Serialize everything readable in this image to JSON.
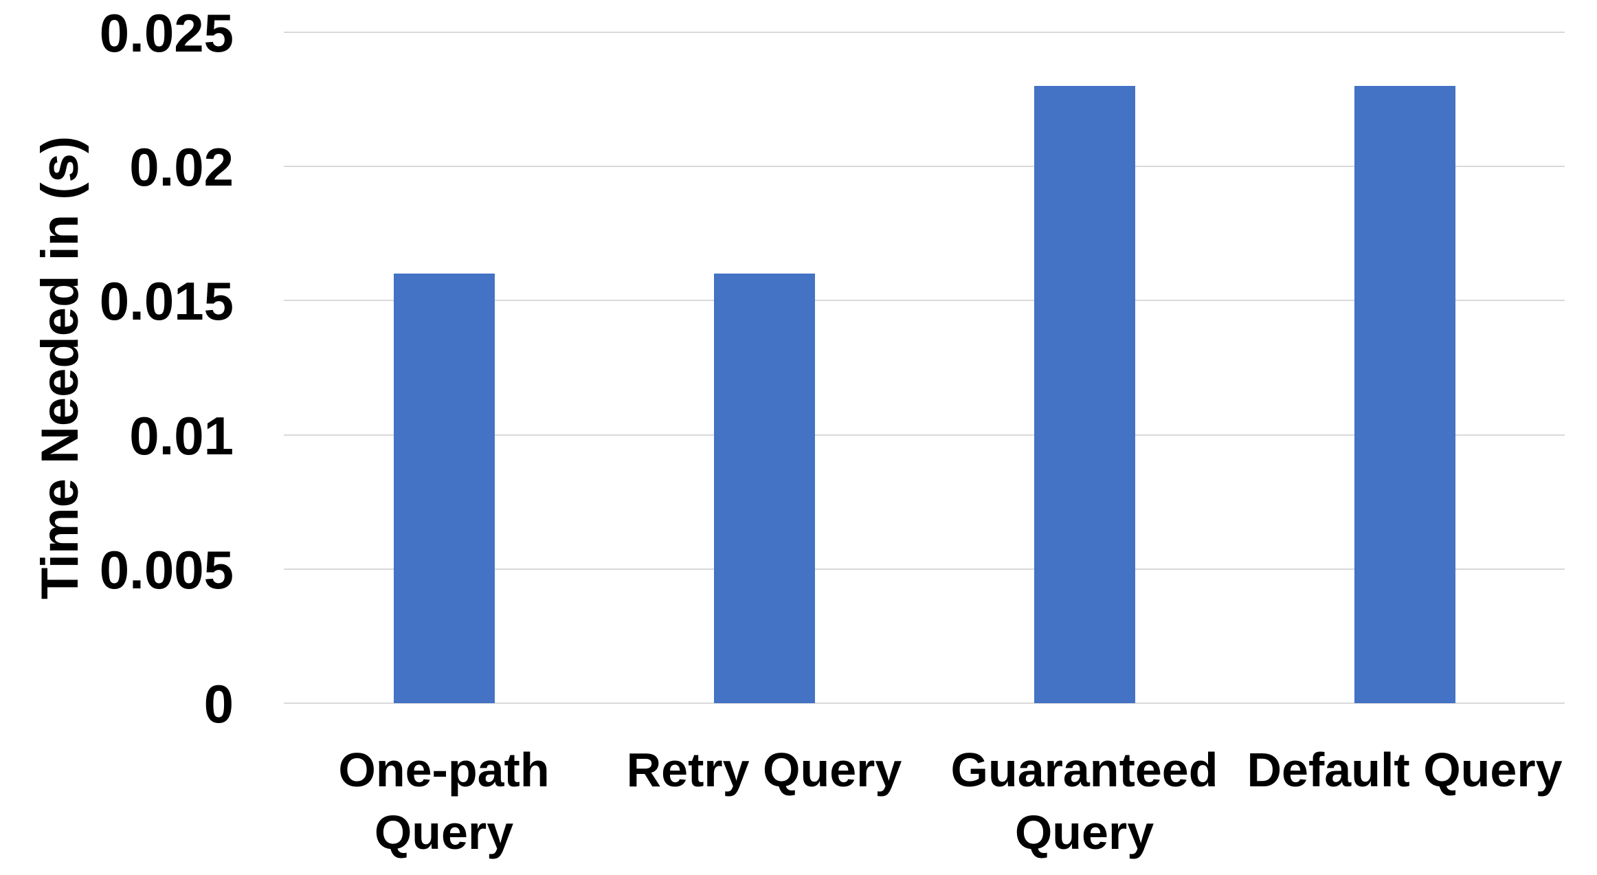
{
  "chart_data": {
    "type": "bar",
    "categories": [
      "One-path\nQuery",
      "Retry Query",
      "Guaranteed\nQuery",
      "Default Query"
    ],
    "values": [
      0.016,
      0.016,
      0.023,
      0.023
    ],
    "title": "",
    "xlabel": "",
    "ylabel": "Time Needed in (s)",
    "ylim": [
      0,
      0.025
    ],
    "yticks": [
      0,
      0.005,
      0.01,
      0.015,
      0.02,
      0.025
    ],
    "ytick_labels": [
      "0",
      "0.005",
      "0.01",
      "0.015",
      "0.02",
      "0.025"
    ],
    "grid": true,
    "legend": false,
    "legend_position": "none",
    "bar_color": "#4472C4",
    "gridline_color": "#D9D9D9",
    "text_color": "#000000",
    "background_color": "#FFFFFF"
  }
}
